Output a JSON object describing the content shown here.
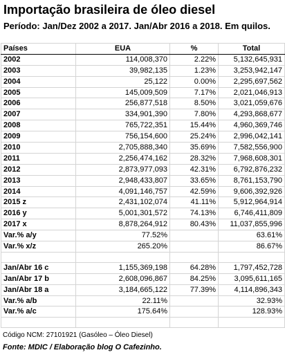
{
  "title": "Importação brasileira de óleo diesel",
  "subtitle": "Período: Jan/Dez 2002 a 2017. Jan/Abr 2016 a 2018.  Em quilos.",
  "headers": [
    "Países",
    "EUA",
    "%",
    "Total"
  ],
  "rows": [
    [
      "2002",
      "114,008,370",
      "2.22%",
      "5,132,645,931"
    ],
    [
      "2003",
      "39,982,135",
      "1.23%",
      "3,253,942,147"
    ],
    [
      "2004",
      "25,122",
      "0.00%",
      "2,295,697,562"
    ],
    [
      "2005",
      "145,009,509",
      "7.17%",
      "2,021,046,913"
    ],
    [
      "2006",
      "256,877,518",
      "8.50%",
      "3,021,059,676"
    ],
    [
      "2007",
      "334,901,390",
      "7.80%",
      "4,293,868,677"
    ],
    [
      "2008",
      "765,722,351",
      "15.44%",
      "4,960,369,746"
    ],
    [
      "2009",
      "756,154,600",
      "25.24%",
      "2,996,042,141"
    ],
    [
      "2010",
      "2,705,888,340",
      "35.69%",
      "7,582,556,900"
    ],
    [
      "2011",
      "2,256,474,162",
      "28.32%",
      "7,968,608,301"
    ],
    [
      "2012",
      "2,873,977,093",
      "42.31%",
      "6,792,876,232"
    ],
    [
      "2013",
      "2,948,433,807",
      "33.65%",
      "8,761,153,790"
    ],
    [
      "2014",
      "4,091,146,757",
      "42.59%",
      "9,606,392,926"
    ],
    [
      "2015 z",
      "2,431,102,074",
      "41.11%",
      "5,912,964,914"
    ],
    [
      "2016 y",
      "5,001,301,572",
      "74.13%",
      "6,746,411,809"
    ],
    [
      "2017 x",
      "8,878,264,912",
      "80.43%",
      "11,037,855,996"
    ],
    [
      "Var.% a/y",
      "77.52%",
      "",
      "63.61%"
    ],
    [
      "Var.% x/z",
      "265.20%",
      "",
      "86.67%"
    ],
    [
      "",
      "",
      "",
      ""
    ],
    [
      "Jan/Abr 16 c",
      "1,155,369,198",
      "64.28%",
      "1,797,452,728"
    ],
    [
      "Jan/Abr 17 b",
      "2,608,096,867",
      "84.25%",
      "3,095,611,165"
    ],
    [
      "Jan/Abr 18 a",
      "3,184,665,122",
      "77.39%",
      "4,114,896,343"
    ],
    [
      "Var.% a/b",
      "22.11%",
      "",
      "32.93%"
    ],
    [
      "Var.% a/c",
      "175.64%",
      "",
      "128.93%"
    ],
    [
      "",
      "",
      "",
      ""
    ]
  ],
  "footer": {
    "code": "Código NCM: 27101921 (Gasóleo – Óleo Diesel)",
    "source": "Fonte: MDIC / Elaboração blog O Cafezinho."
  }
}
